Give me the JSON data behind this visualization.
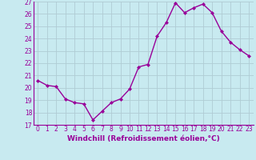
{
  "x": [
    0,
    1,
    2,
    3,
    4,
    5,
    6,
    7,
    8,
    9,
    10,
    11,
    12,
    13,
    14,
    15,
    16,
    17,
    18,
    19,
    20,
    21,
    22,
    23
  ],
  "y": [
    20.6,
    20.2,
    20.1,
    19.1,
    18.8,
    18.7,
    17.4,
    18.1,
    18.8,
    19.1,
    19.9,
    21.7,
    21.9,
    24.2,
    25.3,
    26.9,
    26.1,
    26.5,
    26.8,
    26.1,
    24.6,
    23.7,
    23.1,
    22.6
  ],
  "line_color": "#990099",
  "marker": "D",
  "marker_size": 2.0,
  "line_width": 1.0,
  "bg_color": "#c8eaf0",
  "grid_color": "#b0ccd4",
  "xlabel": "Windchill (Refroidissement éolien,°C)",
  "tick_color": "#990099",
  "ylim": [
    17,
    27
  ],
  "xlim": [
    -0.5,
    23.5
  ],
  "yticks": [
    17,
    18,
    19,
    20,
    21,
    22,
    23,
    24,
    25,
    26,
    27
  ],
  "xticks": [
    0,
    1,
    2,
    3,
    4,
    5,
    6,
    7,
    8,
    9,
    10,
    11,
    12,
    13,
    14,
    15,
    16,
    17,
    18,
    19,
    20,
    21,
    22,
    23
  ],
  "tick_fontsize": 5.5,
  "xlabel_fontsize": 6.5
}
